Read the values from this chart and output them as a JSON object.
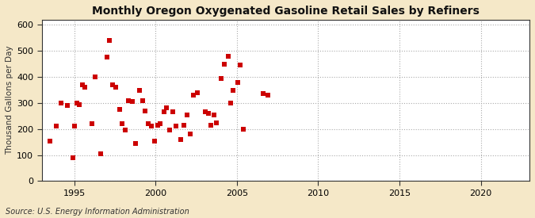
{
  "title": "Monthly Oregon Oxygenated Gasoline Retail Sales by Refiners",
  "ylabel": "Thousand Gallons per Day",
  "source": "Source: U.S. Energy Information Administration",
  "fig_background_color": "#f5e8c8",
  "plot_background_color": "#ffffff",
  "marker_color": "#cc0000",
  "grid_color": "#aaaaaa",
  "xlim": [
    1993.0,
    2023.0
  ],
  "ylim": [
    0,
    620
  ],
  "yticks": [
    0,
    100,
    200,
    300,
    400,
    500,
    600
  ],
  "xticks": [
    1995,
    2000,
    2005,
    2010,
    2015,
    2020
  ],
  "scatter_x": [
    1993.5,
    1993.9,
    1994.2,
    1994.6,
    1994.9,
    1995.0,
    1995.15,
    1995.3,
    1995.5,
    1995.65,
    1996.1,
    1996.3,
    1996.6,
    1997.0,
    1997.15,
    1997.35,
    1997.55,
    1997.8,
    1997.95,
    1998.15,
    1998.35,
    1998.55,
    1998.75,
    1999.0,
    1999.2,
    1999.35,
    1999.55,
    1999.75,
    1999.95,
    2000.15,
    2000.3,
    2000.5,
    2000.65,
    2000.85,
    2001.05,
    2001.25,
    2001.55,
    2001.75,
    2001.95,
    2002.15,
    2002.35,
    2002.55,
    2003.05,
    2003.25,
    2003.4,
    2003.6,
    2003.75,
    2004.05,
    2004.25,
    2004.45,
    2004.6,
    2004.75,
    2005.05,
    2005.2,
    2005.4,
    2006.6,
    2006.9
  ],
  "scatter_y": [
    155,
    210,
    300,
    290,
    90,
    210,
    300,
    295,
    370,
    360,
    220,
    400,
    105,
    475,
    540,
    370,
    360,
    275,
    220,
    195,
    310,
    305,
    145,
    350,
    310,
    270,
    220,
    210,
    155,
    215,
    220,
    265,
    280,
    195,
    265,
    210,
    160,
    215,
    255,
    180,
    330,
    340,
    265,
    260,
    215,
    255,
    225,
    395,
    450,
    480,
    300,
    350,
    380,
    445,
    200,
    335,
    330
  ]
}
